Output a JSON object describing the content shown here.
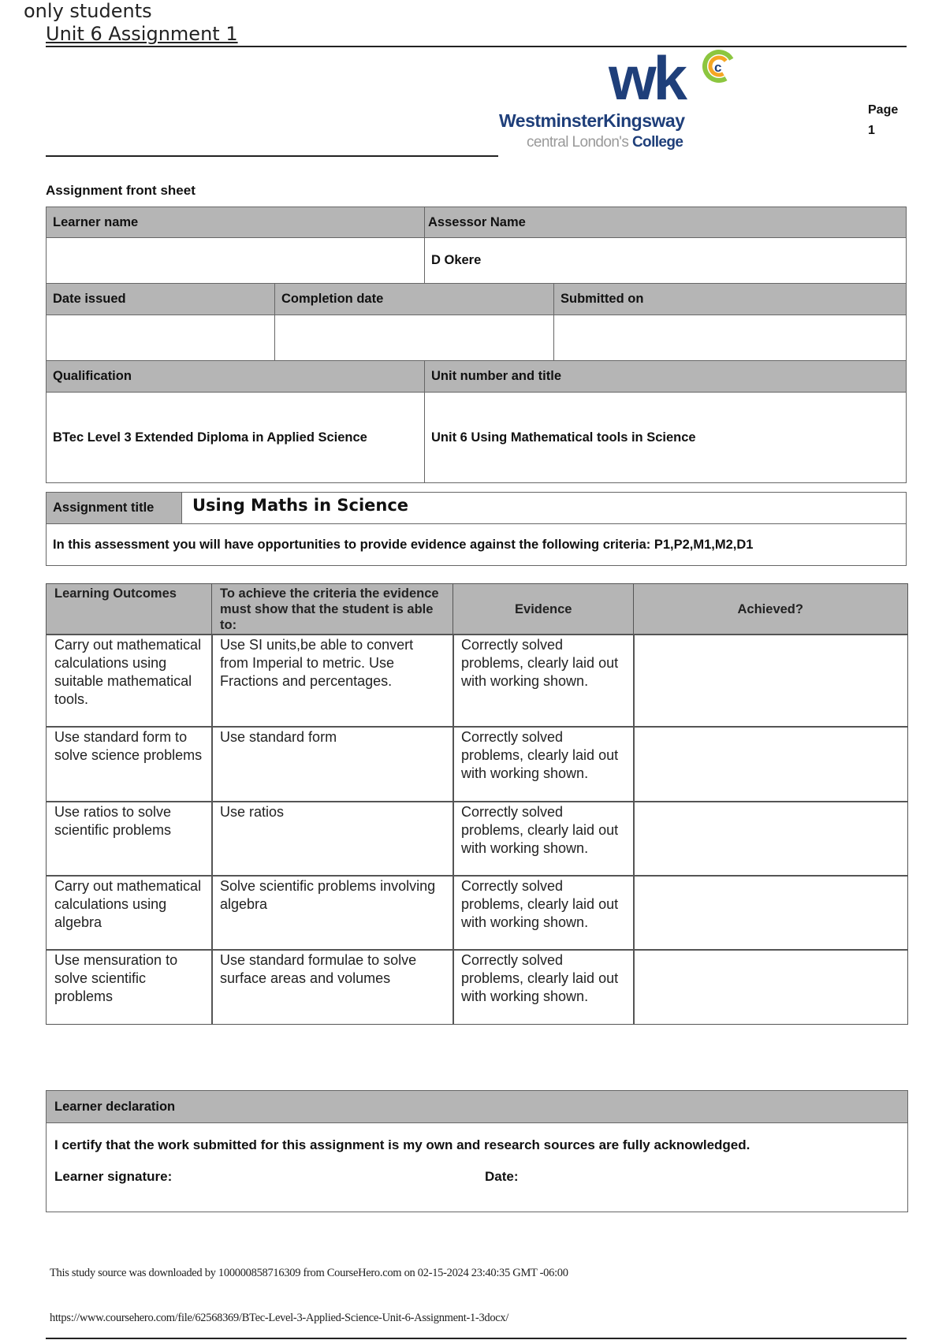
{
  "header": {
    "overlay_text": "only students",
    "title": "Unit 6 Assignment 1",
    "page_label": "Page",
    "page_number": "1"
  },
  "logo": {
    "letters": "wkc",
    "name": "WestminsterKingsway",
    "tagline_light": "central London's",
    "tagline_bold": "College",
    "colors": {
      "navy": "#1f3f7a",
      "green": "#8cc63f",
      "orange": "#f5a623",
      "gray": "#9a9a9a"
    }
  },
  "front_sheet": {
    "heading": "Assignment front sheet",
    "learner_name_label": "Learner name",
    "learner_name_value": "",
    "assessor_name_label": "Assessor Name",
    "assessor_name_value": "D Okere",
    "date_issued_label": "Date issued",
    "completion_date_label": "Completion date",
    "submitted_on_label": "Submitted on",
    "qualification_label": "Qualification",
    "qualification_value": "BTec Level 3 Extended Diploma in Applied Science",
    "unit_label": "Unit number and title",
    "unit_value": "Unit 6 Using Mathematical tools in Science"
  },
  "assignment": {
    "title_label": "Assignment title",
    "title_value": "Using Maths in Science",
    "criteria_text": "In this assessment you will have opportunities to provide evidence against the following criteria:  P1,P2,M1,M2,D1"
  },
  "outcomes_table": {
    "headers": [
      "Learning Outcomes",
      "To achieve the criteria the evidence must show that the student is able to:",
      "Evidence",
      "Achieved?"
    ],
    "rows": [
      [
        "Carry out mathematical calculations using suitable mathematical tools.",
        "Use SI units,be able to convert from Imperial to metric. Use Fractions and percentages.",
        "Correctly solved problems, clearly laid out with working shown.",
        ""
      ],
      [
        "Use standard form to solve science problems",
        "Use standard form",
        "Correctly solved problems, clearly laid out with working shown.",
        ""
      ],
      [
        "Use ratios to solve scientific problems",
        "Use ratios",
        "Correctly solved problems, clearly laid out with working shown.",
        ""
      ],
      [
        "Carry out mathematical calculations using algebra",
        "Solve scientific problems involving algebra",
        "Correctly solved problems, clearly laid out with working shown.",
        ""
      ],
      [
        "Use mensuration to solve scientific problems",
        "Use standard formulae to solve surface areas and volumes",
        "Correctly solved problems, clearly laid out with working shown.",
        ""
      ]
    ]
  },
  "declaration": {
    "heading": "Learner declaration",
    "statement": "I certify that the work submitted for this assignment is my own and research sources are fully acknowledged.",
    "signature_label": "Learner signature:",
    "date_label": "Date:"
  },
  "footer": {
    "download_note": "This study source was downloaded by 100000858716309 from CourseHero.com on 02-15-2024 23:40:35 GMT -06:00",
    "url": "https://www.coursehero.com/file/62568369/BTec-Level-3-Applied-Science-Unit-6-Assignment-1-3docx/"
  }
}
